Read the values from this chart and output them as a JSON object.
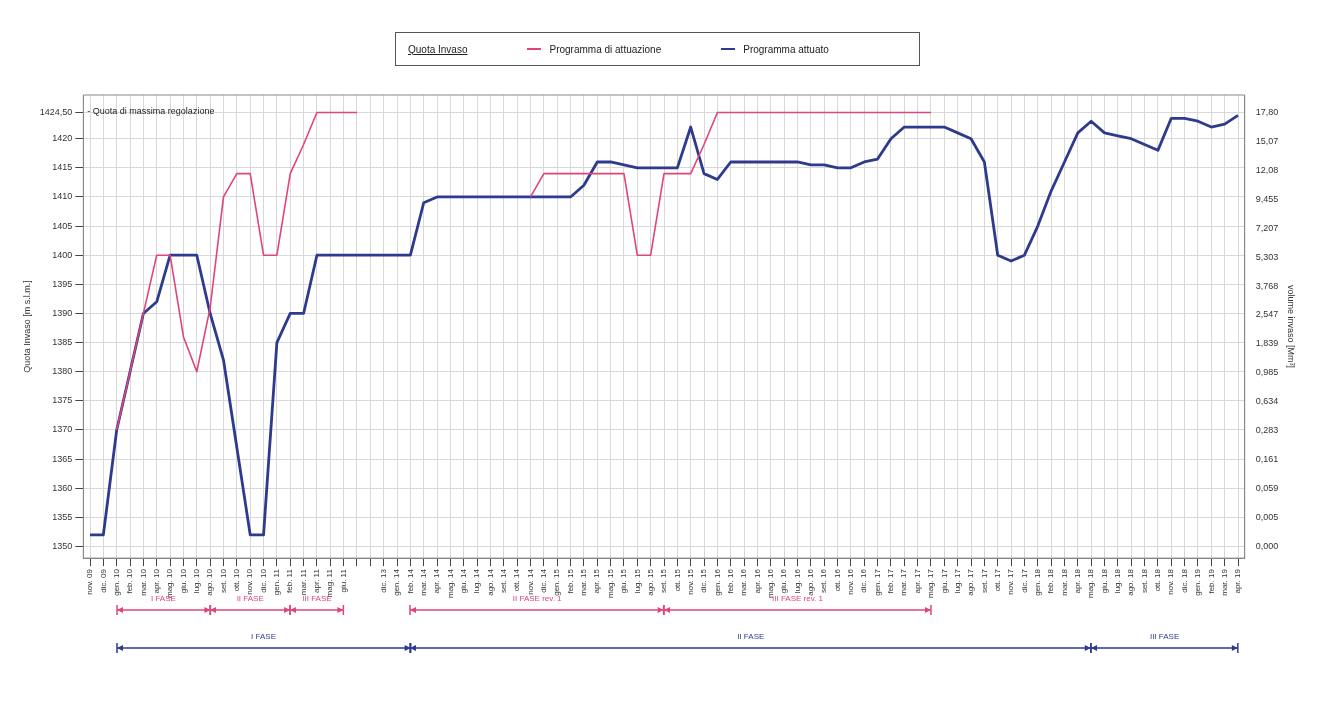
{
  "chart_data": {
    "type": "line",
    "legend_title": "Quota Invaso",
    "legend": "top",
    "grid": true,
    "ylabel": "Quota Invaso [m s.l.m.]",
    "y2label": "volume invaso [Mm³]",
    "ylim": [
      1348,
      1427.5
    ],
    "yticks": [
      1350,
      1355,
      1360,
      1365,
      1370,
      1375,
      1380,
      1385,
      1390,
      1395,
      1400,
      1405,
      1410,
      1415,
      1420,
      {
        "value": 1424.5,
        "label": "1424,50"
      }
    ],
    "y2_categories": [
      "17,80",
      "15,07",
      "12,08",
      "9,455",
      "7,207",
      "5,303",
      "3,768",
      "2,547",
      "1,839",
      "0,985",
      "0,634",
      "0,283",
      "0,161",
      "0,059",
      "0,005",
      "0,000"
    ],
    "categories": [
      "nov. 09",
      "dic. 09",
      "gen. 10",
      "feb. 10",
      "mar. 10",
      "apr. 10",
      "mag. 10",
      "giu. 10",
      "lug. 10",
      "ago. 10",
      "set. 10",
      "ott. 10",
      "nov. 10",
      "dic. 10",
      "gen. 11",
      "feb. 11",
      "mar. 11",
      "apr. 11",
      "mag. 11",
      "giu. 11",
      null,
      null,
      "dic. 13",
      "gen. 14",
      "feb. 14",
      "mar. 14",
      "apr. 14",
      "mag. 14",
      "giu. 14",
      "lug. 14",
      "ago. 14",
      "set. 14",
      "ott. 14",
      "nov. 14",
      "dic. 14",
      "gen. 15",
      "feb. 15",
      "mar. 15",
      "apr. 15",
      "mag. 15",
      "giu. 15",
      "lug. 15",
      "ago. 15",
      "set. 15",
      "ott. 15",
      "nov. 15",
      "dic. 15",
      "gen. 16",
      "feb. 16",
      "mar. 16",
      "apr. 16",
      "mag. 16",
      "giu. 16",
      "lug. 16",
      "ago. 16",
      "set. 16",
      "ott. 16",
      "nov. 16",
      "dic. 16",
      "gen. 17",
      "feb. 17",
      "mar. 17",
      "apr. 17",
      "mag. 17",
      "giu. 17",
      "lug. 17",
      "ago. 17",
      "set. 17",
      "ott. 17",
      "nov. 17",
      "dic. 17",
      "gen. 18",
      "feb. 18",
      "mar. 18",
      "apr. 18",
      "mag. 18",
      "giu. 18",
      "lug. 18",
      "ago. 18",
      "set. 18",
      "ott. 18",
      "nov. 18",
      "dic. 18",
      "gen. 19",
      "feb. 19",
      "mar. 19",
      "apr. 19"
    ],
    "series": [
      {
        "name": "Programma di attuazione",
        "color": "#e0447c",
        "values": [
          null,
          null,
          1370,
          1380,
          1390,
          1400,
          1400,
          1386,
          1380,
          1391,
          1410,
          1414,
          1414,
          1400,
          1400,
          1414,
          1419,
          1424.5,
          1424.5,
          1424.5,
          1424.5,
          null,
          null,
          null,
          null,
          null,
          null,
          null,
          null,
          null,
          null,
          null,
          null,
          1410,
          1414,
          1414,
          1414,
          1414,
          1414,
          1414,
          1414,
          1400,
          1400,
          1414,
          1414,
          1414,
          1419,
          1424.5,
          1424.5,
          1424.5,
          1424.5,
          1424.5,
          1424.5,
          1424.5,
          1424.5,
          1424.5,
          1424.5,
          1424.5,
          1424.5,
          1424.5,
          1424.5,
          1424.5,
          1424.5,
          1424.5,
          null,
          null,
          null,
          null,
          null,
          null,
          null,
          null,
          null,
          null,
          null,
          null,
          null,
          null,
          null,
          null,
          null,
          null,
          null,
          null,
          null,
          null,
          null
        ]
      },
      {
        "name": "Programma attuato",
        "color": "#2e3a8c",
        "values": [
          1352,
          1352,
          1370,
          1380,
          1390,
          1392,
          1400,
          1400,
          1400,
          1390,
          1382,
          1367,
          1352,
          1352,
          1385,
          1390,
          1390,
          1400,
          1400,
          1400,
          1400,
          1400,
          1400,
          1400,
          1400,
          1409,
          1410,
          1410,
          1410,
          1410,
          1410,
          1410,
          1410,
          1410,
          1410,
          1410,
          1410,
          1412,
          1416,
          1416,
          1415.5,
          1415,
          1415,
          1415,
          1415,
          1422,
          1414,
          1413,
          1416,
          1416,
          1416,
          1416,
          1416,
          1416,
          1415.5,
          1415.5,
          1415,
          1415,
          1416,
          1416.5,
          1420,
          1422,
          1422,
          1422,
          1422,
          1421,
          1420,
          1416,
          1400,
          1399,
          1400,
          1405,
          1411,
          1416,
          1421,
          1423,
          1421,
          1420.5,
          1420,
          1419,
          1418,
          1423.5,
          1423.5,
          1423,
          1422,
          1422.5,
          1424
        ]
      }
    ],
    "annotations": [
      "- Quota di massima regolazione",
      "I FASE",
      "II FASE",
      "III FASE",
      "II FASE rev. 1",
      "III FASE rev. 1",
      "I FASE",
      "II FASE",
      "III FASE"
    ]
  }
}
